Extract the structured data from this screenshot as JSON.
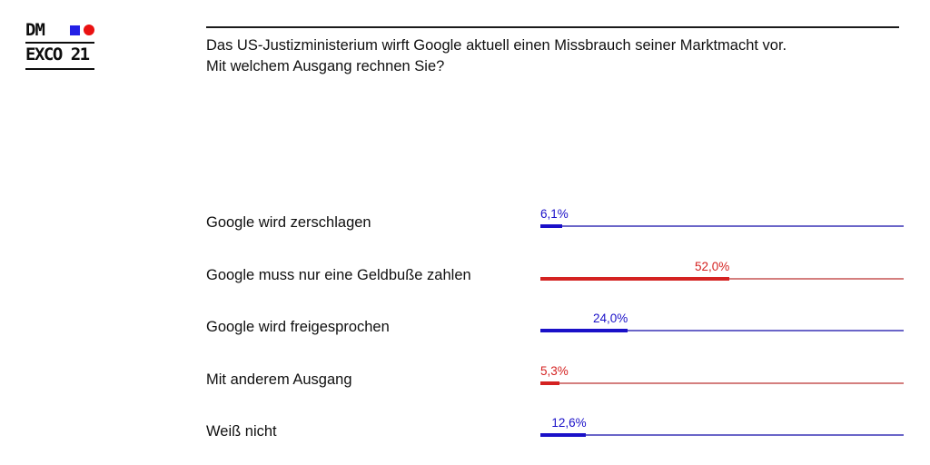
{
  "logo": {
    "line1": "DM",
    "line2": "EXCO 21",
    "square_color": "#2320e6",
    "circle_color": "#ea1111"
  },
  "header": {
    "title_line1": "Das US-Justizministerium wirft Google aktuell einen Missbrauch seiner Marktmacht vor.",
    "title_line2": "Mit welchem Ausgang rechnen Sie?"
  },
  "chart_data": {
    "type": "bar",
    "orientation": "horizontal",
    "title": "Das US-Justizministerium wirft Google aktuell einen Missbrauch seiner Marktmacht vor. Mit welchem Ausgang rechnen Sie?",
    "xlim": [
      0,
      100
    ],
    "grid": false,
    "legend": "none",
    "categories": [
      "Google wird zerschlagen",
      "Google muss nur eine Geldbuße zahlen",
      "Google wird freigesprochen",
      "Mit anderem Ausgang",
      "Weiß nicht"
    ],
    "values": [
      6.1,
      52.0,
      24.0,
      5.3,
      12.6
    ],
    "value_labels": [
      "6,1%",
      "52,0%",
      "24,0%",
      "5,3%",
      "12,6%"
    ],
    "bar_color_keys": [
      "blue",
      "red",
      "blue",
      "red",
      "blue"
    ],
    "palette": {
      "blue": {
        "bar": "#1a10c8",
        "track": "#6a65c8",
        "label": "#1a10c8"
      },
      "red": {
        "bar": "#d42221",
        "track": "#d47f7e",
        "label": "#d42221"
      }
    }
  }
}
